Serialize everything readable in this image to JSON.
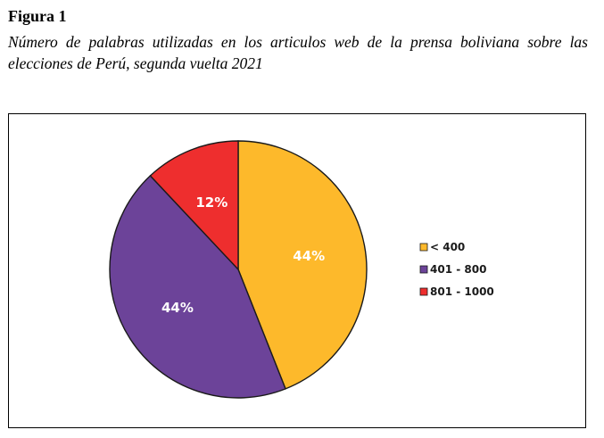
{
  "figure": {
    "label": "Figura 1",
    "caption": "Número de palabras utilizadas en los articulos web de la prensa boliviana sobre las elecciones de Perú, segunda vuelta 2021"
  },
  "chart_data": {
    "type": "pie",
    "title": "",
    "categories": [
      "< 400",
      "401 - 800",
      "801 - 1000"
    ],
    "values": [
      44,
      44,
      12
    ],
    "value_labels": [
      "44%",
      "44%",
      "12%"
    ],
    "colors": [
      "#FDB92B",
      "#6C4399",
      "#EE2E2E"
    ],
    "legend_position": "right",
    "start_angle": "12 o'clock",
    "direction": "clockwise"
  }
}
